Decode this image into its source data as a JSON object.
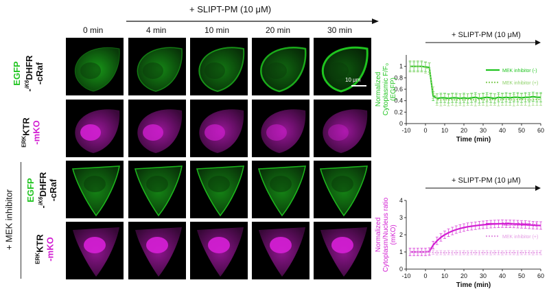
{
  "top_arrow_label": "+ SLIPT-PM (10 μM)",
  "time_headers": [
    "0 min",
    "4 min",
    "10 min",
    "20 min",
    "30 min"
  ],
  "row_labels": {
    "egfp_a": "EGFP",
    "egfp_b": "-",
    "egfp_sup": "iK6",
    "egfp_c": "DHFR",
    "egfp_d": "-cRaf",
    "ktr_sup": "ERK",
    "ktr_a": "KTR",
    "ktr_b": "-mKO"
  },
  "mek_label": "+ MEK inhibitor",
  "scale_bar_label": "10 μm",
  "colors": {
    "egfp": "#1fc41f",
    "mko": "#d21fd2"
  },
  "chart_data": [
    {
      "type": "line",
      "annotation": "+ SLIPT-PM (10 μM)",
      "ylabel": "Normalized Cytoplasmic F/F₀ (EGFP)",
      "ylabel_lines": [
        "Normalized",
        "Cytoplasmic F/F₀",
        "(EGFP)"
      ],
      "xlabel": "Time (min)",
      "xlim": [
        -10,
        60
      ],
      "ylim": [
        0,
        1.2
      ],
      "xticks": [
        -10,
        0,
        10,
        20,
        30,
        40,
        50,
        60
      ],
      "yticks": [
        0,
        0.2,
        0.4,
        0.6,
        0.8,
        1
      ],
      "x": [
        -8,
        -6,
        -4,
        -2,
        0,
        2,
        4,
        6,
        8,
        10,
        12,
        14,
        16,
        18,
        20,
        22,
        24,
        26,
        28,
        30,
        32,
        34,
        36,
        38,
        40,
        42,
        44,
        46,
        48,
        50,
        52,
        54,
        56,
        58,
        60
      ],
      "series": [
        {
          "name": "MEK inhibitor (-)",
          "style": "solid",
          "values": [
            1.0,
            1.0,
            1.0,
            1.0,
            0.99,
            0.98,
            0.48,
            0.44,
            0.45,
            0.45,
            0.44,
            0.45,
            0.45,
            0.44,
            0.45,
            0.44,
            0.45,
            0.46,
            0.44,
            0.45,
            0.46,
            0.45,
            0.44,
            0.46,
            0.45,
            0.46,
            0.45,
            0.46,
            0.46,
            0.45,
            0.46,
            0.46,
            0.47,
            0.46,
            0.46
          ],
          "error": 0.08
        },
        {
          "name": "MEK inhibitor (+)",
          "style": "dotted",
          "values": [
            1.0,
            1.0,
            1.0,
            1.0,
            0.98,
            0.96,
            0.54,
            0.42,
            0.41,
            0.42,
            0.41,
            0.42,
            0.41,
            0.42,
            0.41,
            0.42,
            0.42,
            0.41,
            0.42,
            0.42,
            0.41,
            0.42,
            0.42,
            0.41,
            0.42,
            0.42,
            0.42,
            0.41,
            0.42,
            0.42,
            0.42,
            0.41,
            0.42,
            0.42,
            0.42
          ],
          "error": 0.1
        }
      ]
    },
    {
      "type": "line",
      "annotation": "+ SLIPT-PM (10 μM)",
      "ylabel": "Normalized Cytoplasm/Nucleus ratio (mKO)",
      "ylabel_lines": [
        "Normalized",
        "Cytoplasm/Nucleus ratio",
        "(mKO)"
      ],
      "xlabel": "Time (min)",
      "xlim": [
        -10,
        60
      ],
      "ylim": [
        0,
        4
      ],
      "xticks": [
        -10,
        0,
        10,
        20,
        30,
        40,
        50,
        60
      ],
      "yticks": [
        0,
        1,
        2,
        3,
        4
      ],
      "x": [
        -8,
        -6,
        -4,
        -2,
        0,
        2,
        4,
        6,
        8,
        10,
        12,
        14,
        16,
        18,
        20,
        22,
        24,
        26,
        28,
        30,
        32,
        34,
        36,
        38,
        40,
        42,
        44,
        46,
        48,
        50,
        52,
        54,
        56,
        58,
        60
      ],
      "series": [
        {
          "name": "MEK inhibitor (-)",
          "style": "solid",
          "values": [
            1.0,
            1.0,
            1.0,
            1.0,
            1.0,
            1.02,
            1.4,
            1.65,
            1.85,
            2.0,
            2.12,
            2.22,
            2.3,
            2.37,
            2.42,
            2.47,
            2.5,
            2.53,
            2.56,
            2.58,
            2.6,
            2.62,
            2.63,
            2.64,
            2.65,
            2.64,
            2.64,
            2.63,
            2.62,
            2.61,
            2.6,
            2.58,
            2.56,
            2.55,
            2.54
          ],
          "error": 0.22
        },
        {
          "name": "MEK inhibitor (+)",
          "style": "dotted",
          "values": [
            1.0,
            1.0,
            1.0,
            1.0,
            1.0,
            0.99,
            0.97,
            0.95,
            0.96,
            0.95,
            0.96,
            0.95,
            0.96,
            0.95,
            0.96,
            0.95,
            0.96,
            0.96,
            0.95,
            0.96,
            0.96,
            0.95,
            0.96,
            0.96,
            0.95,
            0.96,
            0.96,
            0.96,
            0.95,
            0.96,
            0.96,
            0.96,
            0.95,
            0.96,
            0.96
          ],
          "error": 0.12
        }
      ]
    }
  ]
}
